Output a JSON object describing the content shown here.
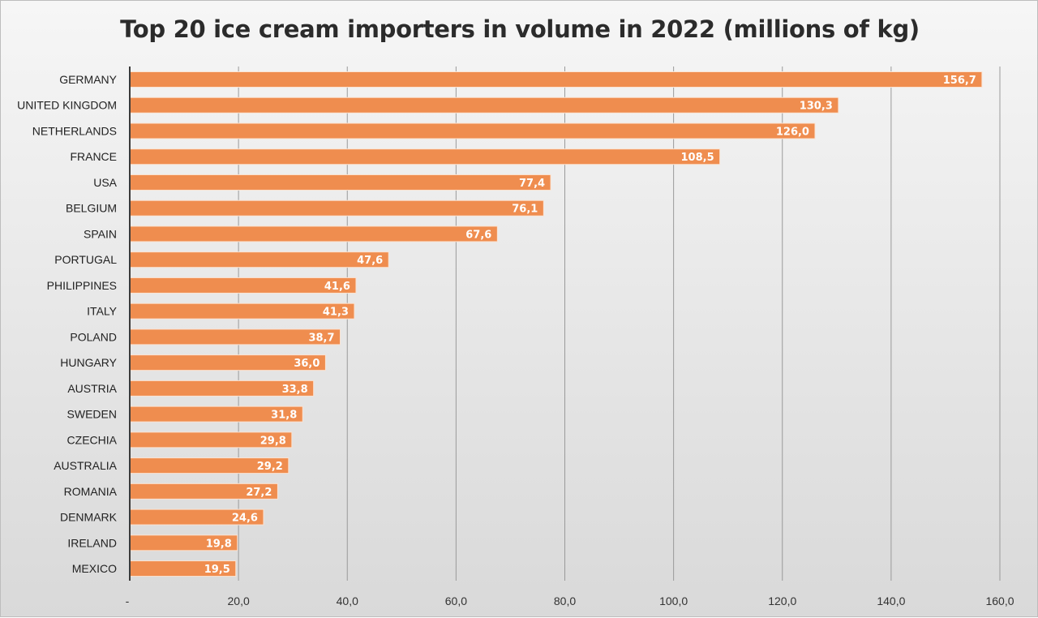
{
  "chart_data": {
    "type": "bar",
    "orientation": "horizontal",
    "title": "Top 20 ice cream importers in volume in 2022 (millions of kg)",
    "categories": [
      "GERMANY",
      "UNITED KINGDOM",
      "NETHERLANDS",
      "FRANCE",
      "USA",
      "BELGIUM",
      "SPAIN",
      "PORTUGAL",
      "PHILIPPINES",
      "ITALY",
      "POLAND",
      "HUNGARY",
      "AUSTRIA",
      "SWEDEN",
      "CZECHIA",
      "AUSTRALIA",
      "ROMANIA",
      "DENMARK",
      "IRELAND",
      "MEXICO"
    ],
    "values": [
      156.7,
      130.3,
      126.0,
      108.5,
      77.4,
      76.1,
      67.6,
      47.6,
      41.6,
      41.3,
      38.7,
      36.0,
      33.8,
      31.8,
      29.8,
      29.2,
      27.2,
      24.6,
      19.8,
      19.5
    ],
    "data_labels": [
      "156,7",
      "130,3",
      "126,0",
      "108,5",
      "77,4",
      "76,1",
      "67,6",
      "47,6",
      "41,6",
      "41,3",
      "38,7",
      "36,0",
      "33,8",
      "31,8",
      "29,8",
      "29,2",
      "27,2",
      "24,6",
      "19,8",
      "19,5"
    ],
    "xlim": [
      0,
      160
    ],
    "x_ticks": [
      0,
      20,
      40,
      60,
      80,
      100,
      120,
      140,
      160
    ],
    "x_tick_labels": [
      "-",
      "20,0",
      "40,0",
      "60,0",
      "80,0",
      "100,0",
      "120,0",
      "140,0",
      "160,0"
    ],
    "grid": "vertical",
    "bar_color": "#ef8d4f",
    "bar_outline_color": "#fbe3d2",
    "grid_color": "#9a9a9a",
    "axis_color": "#3a3a3a"
  }
}
